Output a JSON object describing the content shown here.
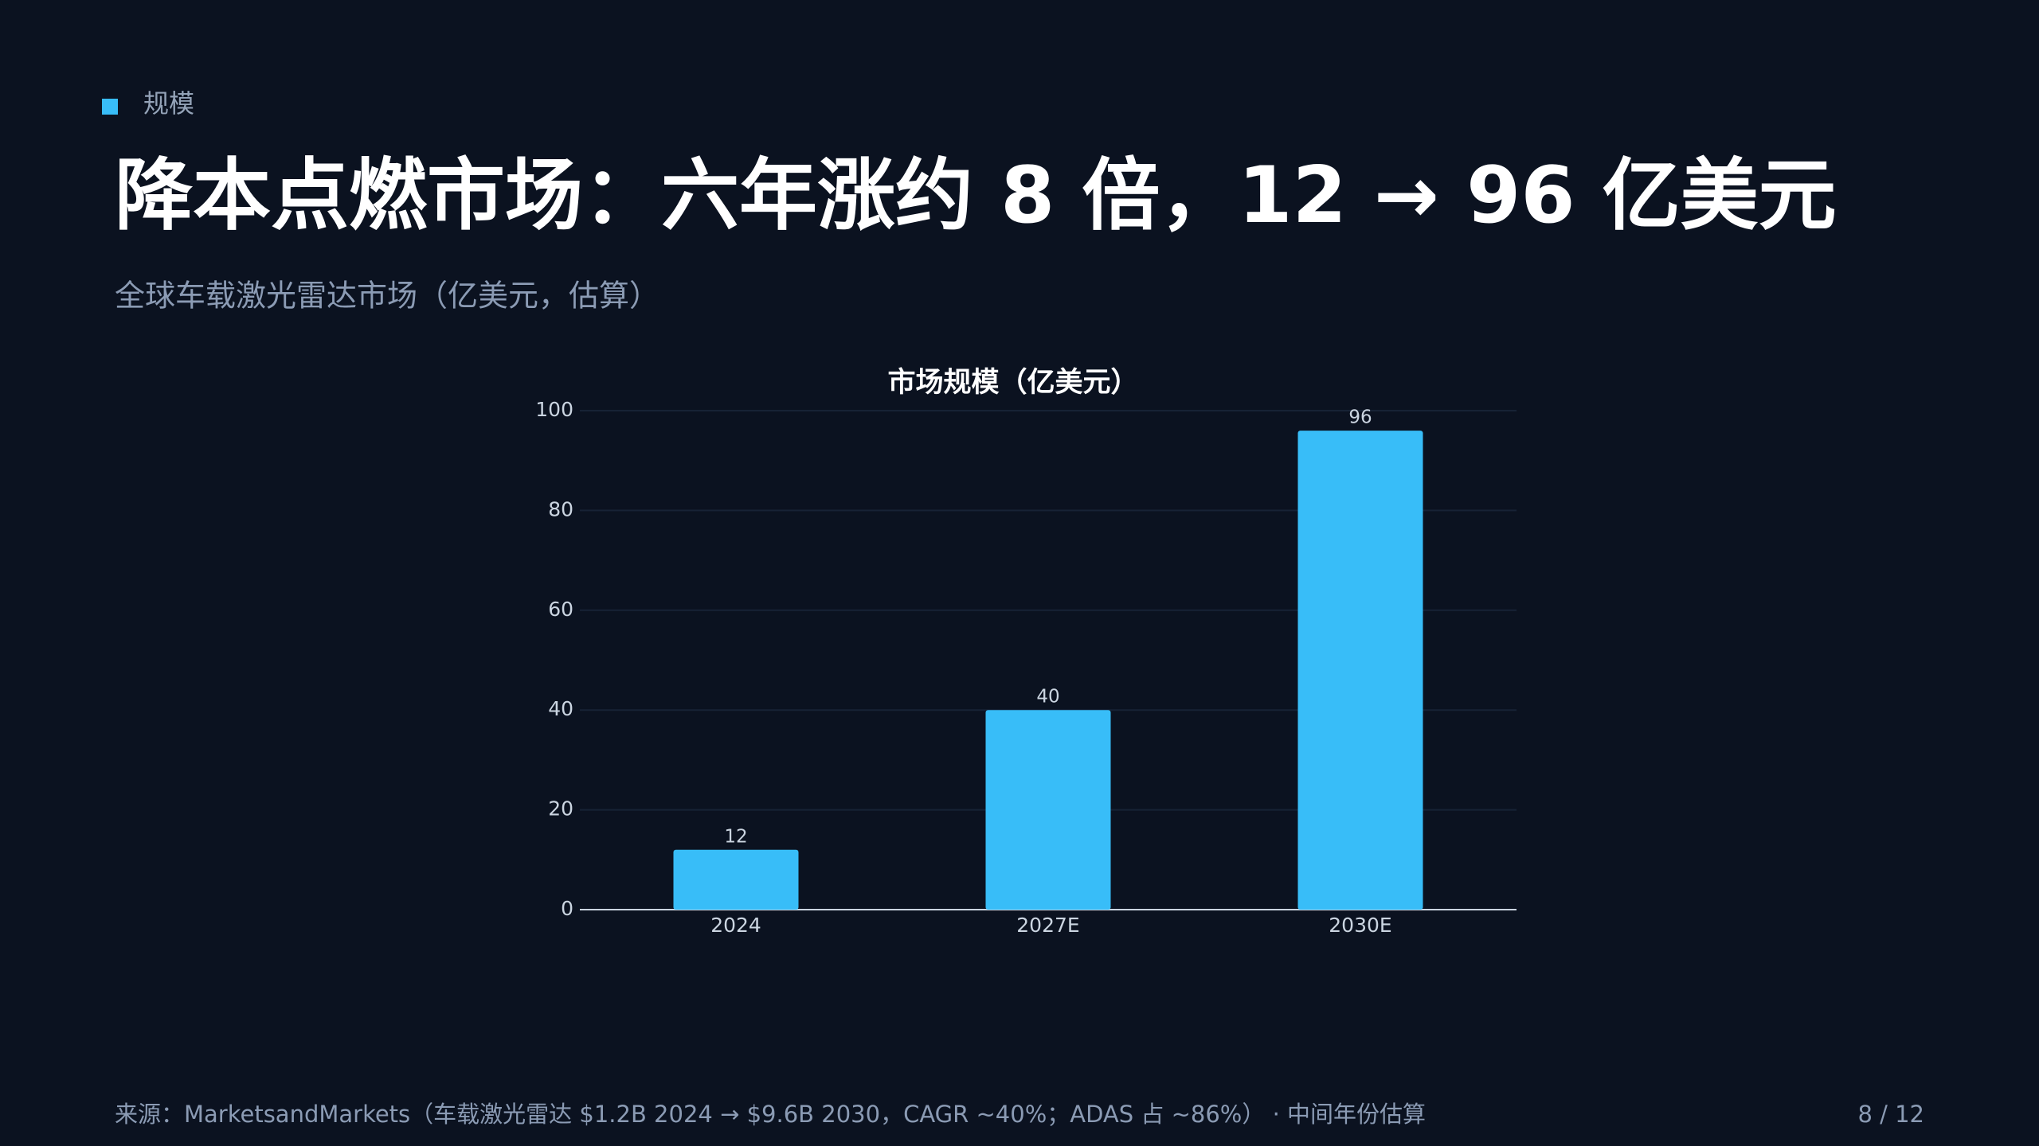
{
  "header": {
    "tag": "规模",
    "title": "降本点燃市场：六年涨约 8 倍，12 → 96 亿美元",
    "subtitle": "全球车载激光雷达市场（亿美元，估算）"
  },
  "chart_data": {
    "type": "bar",
    "title": "市场规模（亿美元）",
    "categories": [
      "2024",
      "2027E",
      "2030E"
    ],
    "values": [
      12,
      40,
      96
    ],
    "color": "#38bdf8",
    "ylim": [
      0,
      100
    ],
    "yticks": [
      0,
      20,
      40,
      60,
      80,
      100
    ],
    "grid": true
  },
  "footer": {
    "source": "来源：MarketsandMarkets（车载激光雷达 $1.2B 2024 → $9.6B 2030，CAGR ~40%；ADAS 占 ~86%） · 中间年份估算",
    "page": "8 / 12"
  }
}
